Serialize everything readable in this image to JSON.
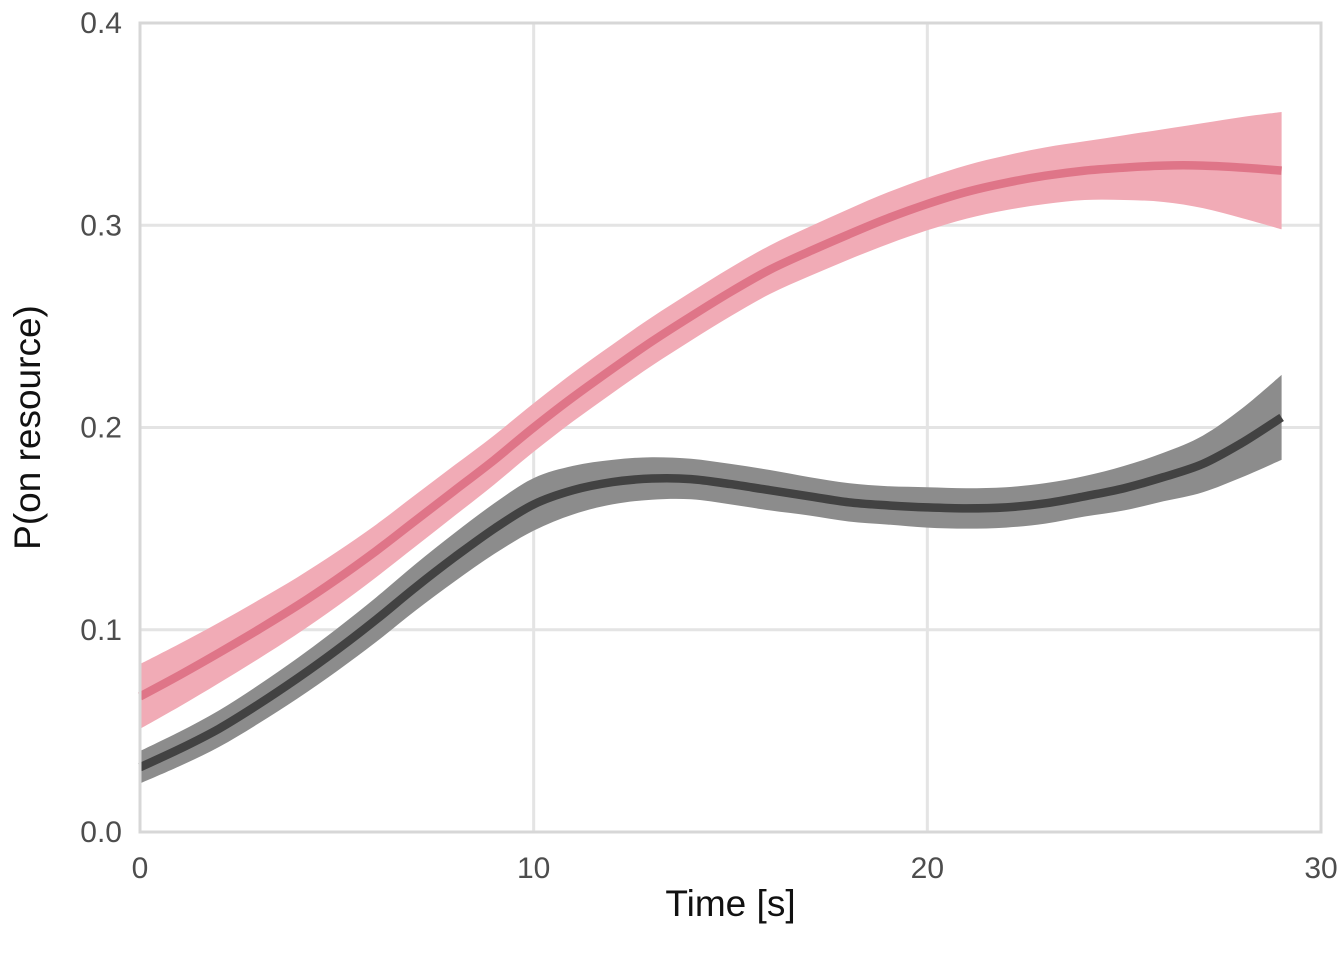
{
  "chart_data": {
    "type": "line",
    "title": "",
    "xlabel": "Time [s]",
    "ylabel": "P(on resource)",
    "xlim": [
      0,
      30
    ],
    "ylim": [
      0,
      0.4
    ],
    "xticks": [
      0,
      10,
      20,
      30
    ],
    "xtick_labels": [
      "0",
      "10",
      "20",
      "30"
    ],
    "yticks": [
      0.0,
      0.1,
      0.2,
      0.3,
      0.4
    ],
    "ytick_labels": [
      "0.0",
      "0.1",
      "0.2",
      "0.3",
      "0.4"
    ],
    "grid": true,
    "legend_position": "none",
    "x": [
      0,
      1,
      2,
      3,
      4,
      5,
      6,
      7,
      8,
      9,
      10,
      11,
      12,
      13,
      14,
      15,
      16,
      17,
      18,
      19,
      20,
      21,
      22,
      23,
      24,
      25,
      26,
      27,
      28,
      29
    ],
    "series": [
      {
        "name": "pink-smooth",
        "line_color": "#df7588",
        "ribbon_color": "#f1abb6",
        "values": [
          0.067,
          0.0775,
          0.0885,
          0.1,
          0.112,
          0.125,
          0.139,
          0.154,
          0.169,
          0.184,
          0.2,
          0.215,
          0.229,
          0.2425,
          0.255,
          0.267,
          0.278,
          0.287,
          0.2955,
          0.3035,
          0.3105,
          0.3165,
          0.321,
          0.3245,
          0.327,
          0.3285,
          0.3295,
          0.3295,
          0.3285,
          0.327
        ],
        "lower": [
          0.051,
          0.062,
          0.0735,
          0.0855,
          0.098,
          0.1115,
          0.126,
          0.1412,
          0.1565,
          0.1718,
          0.188,
          0.203,
          0.217,
          0.2305,
          0.243,
          0.255,
          0.266,
          0.2748,
          0.283,
          0.2907,
          0.2975,
          0.3033,
          0.3075,
          0.3105,
          0.3125,
          0.3125,
          0.3115,
          0.3085,
          0.3035,
          0.298
        ],
        "upper": [
          0.083,
          0.093,
          0.1035,
          0.1145,
          0.126,
          0.1385,
          0.152,
          0.1668,
          0.1815,
          0.1962,
          0.212,
          0.227,
          0.241,
          0.2545,
          0.267,
          0.279,
          0.29,
          0.2992,
          0.308,
          0.3163,
          0.3235,
          0.3297,
          0.3345,
          0.3385,
          0.3415,
          0.3445,
          0.3475,
          0.3505,
          0.3535,
          0.356
        ]
      },
      {
        "name": "gray-smooth",
        "line_color": "#424242",
        "ribbon_color": "#8c8c8c",
        "values": [
          0.032,
          0.041,
          0.051,
          0.063,
          0.076,
          0.09,
          0.105,
          0.121,
          0.136,
          0.15,
          0.162,
          0.169,
          0.173,
          0.1748,
          0.1745,
          0.172,
          0.169,
          0.166,
          0.163,
          0.1615,
          0.1605,
          0.16,
          0.1605,
          0.1625,
          0.166,
          0.17,
          0.1755,
          0.182,
          0.1925,
          0.205
        ],
        "lower": [
          0.024,
          0.0325,
          0.042,
          0.0535,
          0.066,
          0.0795,
          0.094,
          0.1095,
          0.124,
          0.1375,
          0.149,
          0.157,
          0.162,
          0.1643,
          0.1645,
          0.162,
          0.159,
          0.1565,
          0.1535,
          0.152,
          0.1505,
          0.15,
          0.1505,
          0.1525,
          0.156,
          0.159,
          0.1635,
          0.168,
          0.1755,
          0.184
        ],
        "upper": [
          0.04,
          0.0495,
          0.06,
          0.0725,
          0.086,
          0.1005,
          0.116,
          0.1325,
          0.148,
          0.1625,
          0.175,
          0.181,
          0.184,
          0.1853,
          0.1845,
          0.182,
          0.179,
          0.1755,
          0.1725,
          0.171,
          0.1705,
          0.17,
          0.1705,
          0.1725,
          0.176,
          0.181,
          0.1875,
          0.196,
          0.2095,
          0.226
        ]
      }
    ],
    "colors": {
      "background": "#ffffff",
      "grid_line": "#e4e4e4",
      "panel_border": "#d7d7d7",
      "tick_text": "#4d4d4d",
      "title_text": "#111111"
    }
  }
}
